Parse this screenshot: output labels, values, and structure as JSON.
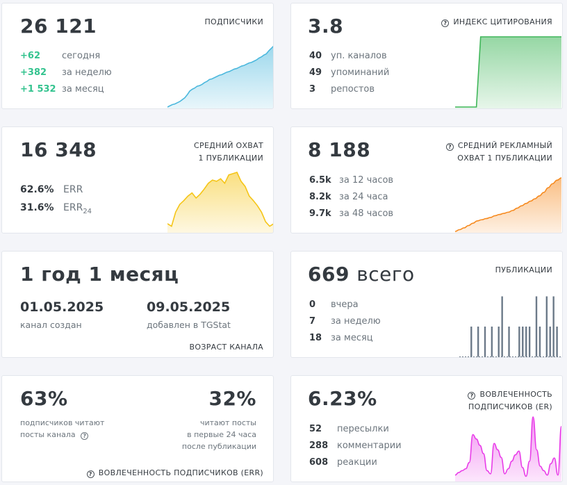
{
  "cards": {
    "subscribers": {
      "value": "26 121",
      "title": "ПОДПИСЧИКИ",
      "rows": [
        {
          "value": "+62",
          "label": "сегодня"
        },
        {
          "value": "+382",
          "label": "за неделю"
        },
        {
          "value": "+1 532",
          "label": "за месяц"
        }
      ]
    },
    "citation": {
      "value": "3.8",
      "title": "ИНДЕКС ЦИТИРОВАНИЯ",
      "rows": [
        {
          "value": "40",
          "label": "уп. каналов"
        },
        {
          "value": "49",
          "label": "упоминаний"
        },
        {
          "value": "3",
          "label": "репостов"
        }
      ]
    },
    "reach": {
      "value": "16 348",
      "title_line1": "СРЕДНИЙ ОХВАТ",
      "title_line2": "1 ПУБЛИКАЦИИ",
      "rows": [
        {
          "value": "62.6%",
          "label": "ERR"
        },
        {
          "value": "31.6%",
          "label": "ERR",
          "sub": "24"
        }
      ]
    },
    "ad_reach": {
      "value": "8 188",
      "title_line1": "СРЕДНИЙ РЕКЛАМНЫЙ",
      "title_line2": "ОХВАТ 1 ПУБЛИКАЦИИ",
      "rows": [
        {
          "value": "6.5k",
          "label": "за 12 часов"
        },
        {
          "value": "8.2k",
          "label": "за 24 часа"
        },
        {
          "value": "9.7k",
          "label": "за 48 часов"
        }
      ]
    },
    "age": {
      "value": "1 год 1 месяц",
      "created_date": "01.05.2025",
      "created_label": "канал создан",
      "added_date": "09.05.2025",
      "added_label": "добавлен в TGStat",
      "title": "ВОЗРАСТ КАНАЛА"
    },
    "posts": {
      "value": "669",
      "value_suffix": "всего",
      "title": "ПУБЛИКАЦИИ",
      "rows": [
        {
          "value": "0",
          "label": "вчера"
        },
        {
          "value": "7",
          "label": "за неделю"
        },
        {
          "value": "18",
          "label": "за месяц"
        }
      ]
    },
    "err": {
      "left_value": "63%",
      "left_caption_1": "подписчиков читают",
      "left_caption_2": "посты канала",
      "right_value": "32%",
      "right_caption_1": "читают посты",
      "right_caption_2": "в первые 24 часа",
      "right_caption_3": "после публикации",
      "title": "ВОВЛЕЧЕННОСТЬ ПОДПИСЧИКОВ (ERR)"
    },
    "er": {
      "value": "6.23%",
      "title_line1": "ВОВЛЕЧЕННОСТЬ",
      "title_line2": "ПОДПИСЧИКОВ (ER)",
      "rows": [
        {
          "value": "52",
          "label": "пересылки"
        },
        {
          "value": "288",
          "label": "комментарии"
        },
        {
          "value": "608",
          "label": "реакции"
        }
      ]
    }
  },
  "colors": {
    "subscribers": "#4cb8dd",
    "citation": "#3fb659",
    "reach": "#f5c518",
    "ad_reach": "#f68a1f",
    "posts": "#6c7a89",
    "er": "#e83ce8",
    "positive": "#34c38f"
  },
  "chart_data": [
    {
      "type": "area",
      "name": "subscribers",
      "y": [
        0,
        2,
        4,
        5,
        7,
        9,
        12,
        15,
        20,
        26,
        29,
        31,
        34,
        35,
        37,
        40,
        42,
        45,
        46,
        48,
        50,
        52,
        53,
        55,
        57,
        58,
        60,
        62,
        63,
        65,
        67,
        68,
        70,
        72,
        73,
        75,
        77,
        80,
        82,
        85,
        87,
        92,
        96,
        100
      ]
    },
    {
      "type": "area",
      "name": "citation",
      "y": [
        0,
        0,
        0,
        0,
        0,
        0,
        100,
        100,
        100,
        100,
        100,
        100,
        100,
        100,
        100,
        100,
        100,
        100,
        100,
        100,
        100,
        100,
        100,
        100,
        100,
        100
      ]
    },
    {
      "type": "area",
      "name": "reach",
      "y": [
        12,
        8,
        30,
        42,
        48,
        55,
        60,
        52,
        58,
        66,
        75,
        80,
        78,
        82,
        75,
        88,
        90,
        92,
        78,
        70,
        55,
        48,
        40,
        30,
        15,
        8,
        12
      ]
    },
    {
      "type": "area",
      "name": "ad_reach",
      "y": [
        0,
        3,
        6,
        10,
        14,
        18,
        20,
        22,
        24,
        27,
        29,
        31,
        33,
        36,
        40,
        44,
        48,
        52,
        56,
        61,
        67,
        75,
        82,
        88,
        92
      ]
    },
    {
      "type": "bar",
      "name": "posts",
      "values": [
        0,
        0,
        0,
        1,
        0,
        1,
        0,
        1,
        0,
        1,
        0,
        1,
        2,
        0,
        1,
        0,
        0,
        1,
        1,
        1,
        1,
        0,
        2,
        1,
        0,
        2,
        1,
        2,
        1,
        0
      ]
    },
    {
      "type": "area",
      "name": "er",
      "y": [
        8,
        12,
        15,
        18,
        28,
        72,
        65,
        55,
        42,
        15,
        10,
        58,
        48,
        36,
        10,
        18,
        30,
        40,
        46,
        20,
        6,
        30,
        100,
        48,
        22,
        15,
        8,
        26,
        35,
        8,
        85
      ]
    }
  ]
}
